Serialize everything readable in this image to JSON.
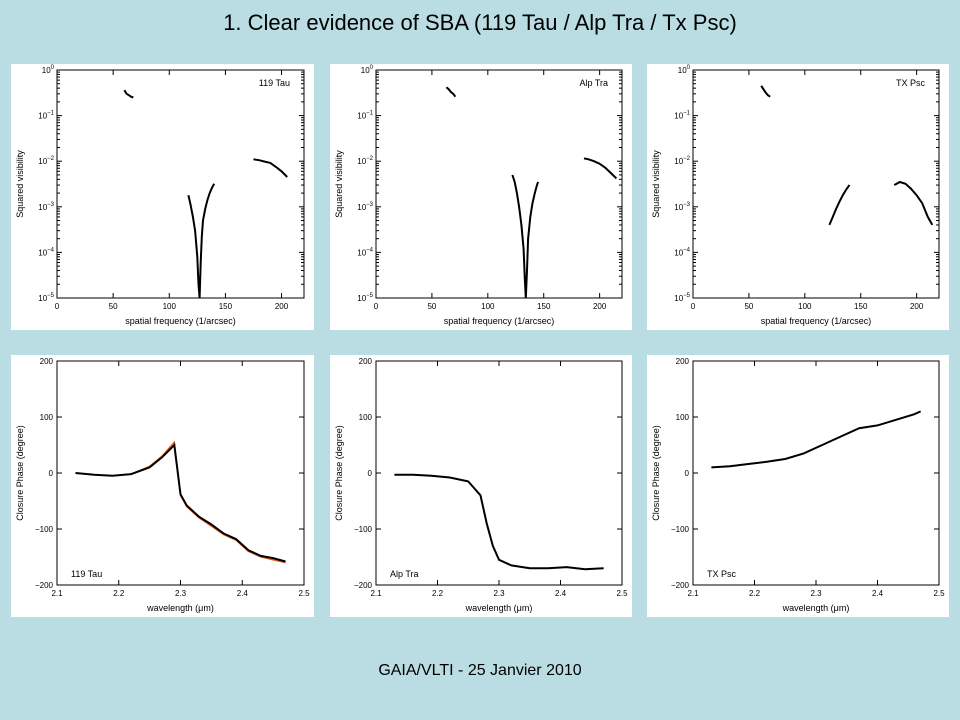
{
  "slide": {
    "title": "1. Clear evidence of SBA (119 Tau / Alp Tra / Tx Psc)",
    "footer": "GAIA/VLTI - 25 Janvier 2010"
  },
  "colors": {
    "background": "#b9dde2",
    "data_black": "#000000",
    "data_orange": "#e8561a"
  },
  "chart_data": [
    {
      "type": "line",
      "annotation": "119 Tau",
      "annotation_position": "top-right",
      "xlabel": "spatial frequency (1/arcsec)",
      "ylabel": "Squared visibility",
      "xlim": [
        0,
        220
      ],
      "ylim": [
        1e-05,
        1
      ],
      "yscale": "log",
      "xticks": [
        0,
        50,
        100,
        150,
        200
      ],
      "yticks": [
        "10^-5",
        "10^-4",
        "10^-3",
        "10^-2",
        "10^-1",
        "10^0"
      ],
      "series": [
        {
          "color": "black",
          "x": [
            60,
            62,
            64,
            66,
            68
          ],
          "y": [
            0.36,
            0.3,
            0.28,
            0.26,
            0.25
          ]
        },
        {
          "color": "black",
          "x": [
            117,
            119,
            121,
            123,
            125,
            126,
            127,
            128,
            129,
            130,
            132,
            134,
            136,
            138,
            140
          ],
          "y": [
            0.0018,
            0.0011,
            0.0006,
            0.0003,
            8e-05,
            2e-05,
            1e-05,
            6e-05,
            0.00022,
            0.0005,
            0.0009,
            0.0014,
            0.002,
            0.0026,
            0.0032
          ]
        },
        {
          "color": "black",
          "x": [
            175,
            180,
            185,
            190,
            195,
            200,
            205
          ],
          "y": [
            0.011,
            0.0105,
            0.0098,
            0.0092,
            0.0075,
            0.006,
            0.0045
          ]
        }
      ]
    },
    {
      "type": "line",
      "annotation": "Alp Tra",
      "annotation_position": "top-right",
      "xlabel": "spatial frequency (1/arcsec)",
      "ylabel": "Squared visibility",
      "xlim": [
        0,
        220
      ],
      "ylim": [
        1e-05,
        1
      ],
      "yscale": "log",
      "xticks": [
        0,
        50,
        100,
        150,
        200
      ],
      "yticks": [
        "10^-5",
        "10^-4",
        "10^-3",
        "10^-2",
        "10^-1",
        "10^0"
      ],
      "series": [
        {
          "color": "black",
          "x": [
            63,
            65,
            67,
            69,
            71
          ],
          "y": [
            0.42,
            0.38,
            0.33,
            0.3,
            0.26
          ]
        },
        {
          "color": "black",
          "x": [
            122,
            124,
            126,
            128,
            130,
            132,
            133,
            134,
            135,
            136,
            138,
            140,
            142,
            144,
            145
          ],
          "y": [
            0.005,
            0.0035,
            0.002,
            0.001,
            0.0004,
            0.00012,
            3e-05,
            1e-05,
            4e-05,
            0.0002,
            0.0006,
            0.0012,
            0.002,
            0.003,
            0.0035
          ]
        },
        {
          "color": "black",
          "x": [
            186,
            190,
            195,
            200,
            205,
            210,
            215
          ],
          "y": [
            0.0115,
            0.011,
            0.01,
            0.0088,
            0.0072,
            0.0055,
            0.0042
          ]
        }
      ]
    },
    {
      "type": "line",
      "annotation": "TX Psc",
      "annotation_position": "top-right",
      "xlabel": "spatial frequency (1/arcsec)",
      "ylabel": "Squared visibility",
      "xlim": [
        0,
        220
      ],
      "ylim": [
        1e-05,
        1
      ],
      "yscale": "log",
      "xticks": [
        0,
        50,
        100,
        150,
        200
      ],
      "yticks": [
        "10^-5",
        "10^-4",
        "10^-3",
        "10^-2",
        "10^-1",
        "10^0"
      ],
      "series": [
        {
          "color": "black",
          "x": [
            61,
            63,
            65,
            67,
            69
          ],
          "y": [
            0.45,
            0.38,
            0.32,
            0.28,
            0.26
          ]
        },
        {
          "color": "black",
          "x": [
            122,
            125,
            128,
            131,
            134,
            137,
            140
          ],
          "y": [
            0.0004,
            0.0006,
            0.0009,
            0.0013,
            0.0018,
            0.0024,
            0.003
          ]
        },
        {
          "color": "black",
          "x": [
            180,
            185,
            190,
            195,
            200,
            205,
            210,
            214
          ],
          "y": [
            0.003,
            0.0035,
            0.0032,
            0.0025,
            0.0018,
            0.0012,
            0.0006,
            0.0004
          ]
        }
      ]
    },
    {
      "type": "line",
      "annotation": "119 Tau",
      "annotation_position": "bottom-left",
      "xlabel": "wavelength (μm)",
      "ylabel": "Closure Phase (degree)",
      "xlim": [
        2.1,
        2.5
      ],
      "ylim": [
        -200,
        200
      ],
      "xticks": [
        "2.1",
        "2.2",
        "2.3",
        "2.4",
        "2.5"
      ],
      "yticks": [
        "−200",
        "−100",
        "0",
        "100",
        "200"
      ],
      "series": [
        {
          "color": "orange",
          "x": [
            2.13,
            2.16,
            2.19,
            2.22,
            2.25,
            2.27,
            2.29,
            2.3,
            2.31,
            2.33,
            2.35,
            2.37,
            2.39,
            2.41,
            2.43,
            2.45,
            2.47
          ],
          "y": [
            0,
            -3,
            -5,
            -2,
            12,
            30,
            55,
            -40,
            -60,
            -80,
            -95,
            -110,
            -120,
            -140,
            -150,
            -155,
            -160
          ]
        },
        {
          "color": "black",
          "x": [
            2.13,
            2.16,
            2.19,
            2.22,
            2.25,
            2.27,
            2.29,
            2.3,
            2.31,
            2.33,
            2.35,
            2.37,
            2.39,
            2.41,
            2.43,
            2.45,
            2.47
          ],
          "y": [
            0,
            -3,
            -5,
            -2,
            10,
            28,
            50,
            -38,
            -58,
            -78,
            -92,
            -108,
            -118,
            -138,
            -148,
            -152,
            -158
          ]
        }
      ]
    },
    {
      "type": "line",
      "annotation": "Alp Tra",
      "annotation_position": "bottom-left",
      "xlabel": "wavelength (μm)",
      "ylabel": "Closure Phase (degree)",
      "xlim": [
        2.1,
        2.5
      ],
      "ylim": [
        -200,
        200
      ],
      "xticks": [
        "2.1",
        "2.2",
        "2.3",
        "2.4",
        "2.5"
      ],
      "yticks": [
        "−200",
        "−100",
        "0",
        "100",
        "200"
      ],
      "series": [
        {
          "color": "orange",
          "x": [
            2.13,
            2.16,
            2.19,
            2.22,
            2.25,
            2.27,
            2.28,
            2.29,
            2.3,
            2.32,
            2.35,
            2.38,
            2.41,
            2.44,
            2.47
          ],
          "y": [
            -3,
            -3,
            -5,
            -8,
            -15,
            -40,
            -90,
            -130,
            -155,
            -165,
            -170,
            -170,
            -168,
            -172,
            -170
          ]
        },
        {
          "color": "black",
          "x": [
            2.13,
            2.16,
            2.19,
            2.22,
            2.25,
            2.27,
            2.28,
            2.29,
            2.3,
            2.32,
            2.35,
            2.38,
            2.41,
            2.44,
            2.47
          ],
          "y": [
            -3,
            -3,
            -5,
            -8,
            -15,
            -40,
            -90,
            -130,
            -155,
            -165,
            -170,
            -170,
            -168,
            -172,
            -170
          ]
        }
      ]
    },
    {
      "type": "line",
      "annotation": "TX Psc",
      "annotation_position": "bottom-left",
      "xlabel": "wavelength (μm)",
      "ylabel": "Closure Phase (degree)",
      "xlim": [
        2.1,
        2.5
      ],
      "ylim": [
        -200,
        200
      ],
      "xticks": [
        "2.1",
        "2.2",
        "2.3",
        "2.4",
        "2.5"
      ],
      "yticks": [
        "−200",
        "−100",
        "0",
        "100",
        "200"
      ],
      "series": [
        {
          "color": "orange",
          "x": [
            2.13,
            2.16,
            2.19,
            2.22,
            2.25,
            2.28,
            2.31,
            2.34,
            2.37,
            2.4,
            2.43,
            2.46,
            2.47
          ],
          "y": [
            10,
            12,
            16,
            20,
            25,
            35,
            50,
            65,
            80,
            85,
            95,
            105,
            110
          ]
        },
        {
          "color": "black",
          "x": [
            2.13,
            2.16,
            2.19,
            2.22,
            2.25,
            2.28,
            2.31,
            2.34,
            2.37,
            2.4,
            2.43,
            2.46,
            2.47
          ],
          "y": [
            10,
            12,
            16,
            20,
            25,
            35,
            50,
            65,
            80,
            85,
            95,
            105,
            110
          ]
        }
      ]
    }
  ]
}
